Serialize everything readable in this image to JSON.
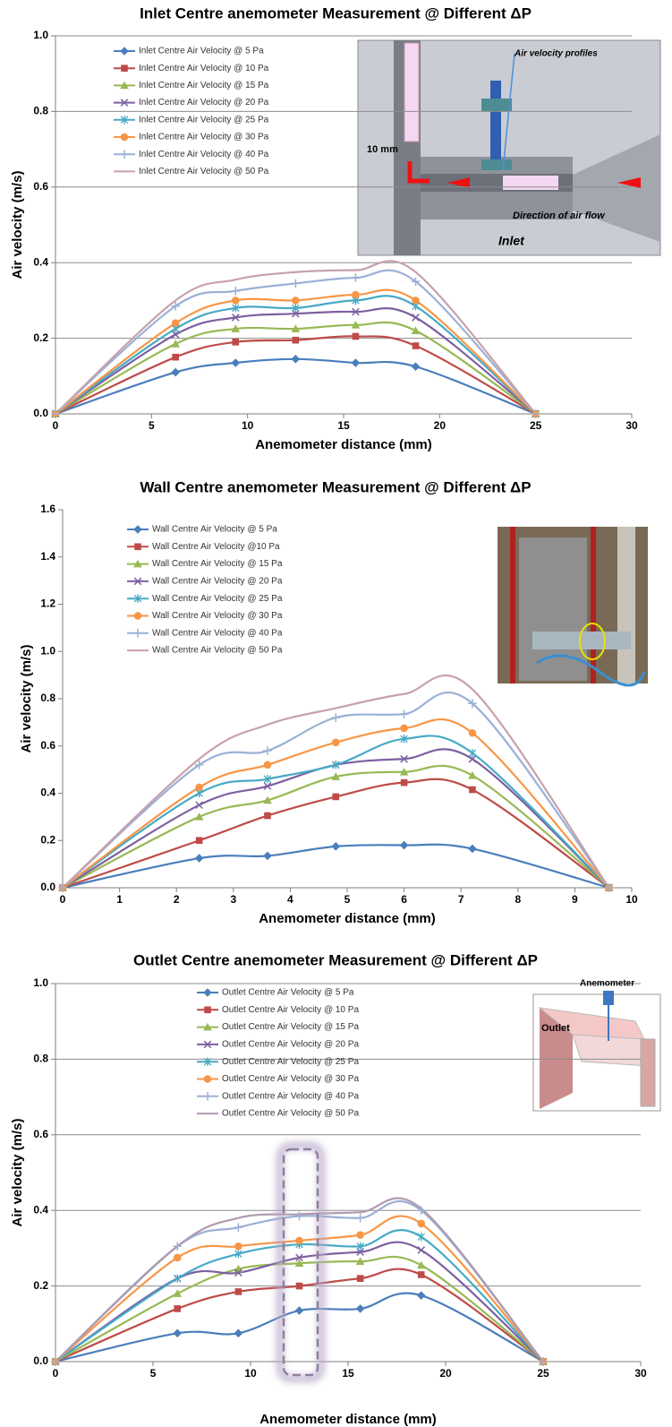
{
  "chart_data": [
    {
      "type": "line",
      "title": "Inlet Centre anemometer Measurement @ Different ΔP",
      "x_label": "Anemometer  distance (mm)",
      "y_label": "Air velocity (m/s)",
      "x": [
        0,
        6.25,
        9.375,
        12.5,
        15.625,
        18.75,
        25
      ],
      "xlim": [
        0,
        30
      ],
      "xticks": [
        0,
        5,
        10,
        15,
        20,
        25,
        30
      ],
      "ylim": [
        0,
        1
      ],
      "yticks": [
        {
          "value": 0,
          "label": "0.0"
        },
        0.2,
        0.4,
        0.6,
        0.8,
        {
          "value": 1,
          "label": "1.0"
        }
      ],
      "grid": true,
      "annotations": [
        "Air velocity profiles",
        "10 mm",
        "Direction of air flow",
        "Inlet"
      ],
      "series": [
        {
          "name": "Inlet Centre Air Velocity @ 5 Pa",
          "color": "#4a7ebb",
          "marker": "diamond",
          "values": [
            0,
            0.11,
            0.135,
            0.145,
            0.135,
            0.125,
            0
          ]
        },
        {
          "name": "Inlet Centre Air Velocity @ 10 Pa",
          "color": "#be4b48",
          "marker": "square",
          "values": [
            0,
            0.15,
            0.19,
            0.195,
            0.205,
            0.18,
            0
          ]
        },
        {
          "name": "Inlet Centre Air Velocity @ 15 Pa",
          "color": "#98b954",
          "marker": "triangle",
          "values": [
            0,
            0.185,
            0.225,
            0.225,
            0.235,
            0.22,
            0
          ]
        },
        {
          "name": "Inlet Centre Air Velocity @ 20 Pa",
          "color": "#7d60a0",
          "marker": "x",
          "values": [
            0,
            0.21,
            0.255,
            0.265,
            0.27,
            0.255,
            0
          ]
        },
        {
          "name": "Inlet Centre Air Velocity @ 25 Pa",
          "color": "#46aac5",
          "marker": "star",
          "values": [
            0,
            0.225,
            0.28,
            0.28,
            0.3,
            0.285,
            0
          ]
        },
        {
          "name": "Inlet Centre Air Velocity @ 30 Pa",
          "color": "#f79646",
          "marker": "circle",
          "values": [
            0,
            0.24,
            0.3,
            0.3,
            0.315,
            0.3,
            0
          ]
        },
        {
          "name": "Inlet Centre Air Velocity @ 40 Pa",
          "color": "#9bb0d6",
          "marker": "plus",
          "values": [
            0,
            0.285,
            0.325,
            0.345,
            0.36,
            0.35,
            0
          ]
        },
        {
          "name": "Inlet Centre Air Velocity @ 50 Pa",
          "color": "#c7a1ab",
          "marker": "none",
          "values": [
            0,
            0.3,
            0.355,
            0.375,
            0.38,
            0.375,
            0
          ]
        }
      ]
    },
    {
      "type": "line",
      "title": "Wall Centre anemometer Measurement @ Different ΔP",
      "x_label": "Anemometer distance (mm)",
      "y_label": "Air velocity (m/s)",
      "x": [
        0,
        2.4,
        3.6,
        4.8,
        6,
        7.2,
        9.6
      ],
      "xlim": [
        0,
        10
      ],
      "xticks": [
        0,
        1,
        2,
        3,
        4,
        5,
        6,
        7,
        8,
        9,
        10
      ],
      "ylim": [
        0,
        1.6
      ],
      "yticks": [
        {
          "value": 0,
          "label": "0.0"
        },
        0.2,
        0.4,
        0.6,
        0.8,
        {
          "value": 1,
          "label": "1.0"
        },
        1.2,
        1.4,
        1.6
      ],
      "grid": false,
      "series": [
        {
          "name": "Wall Centre Air Velocity @ 5 Pa",
          "color": "#4a7ebb",
          "marker": "diamond",
          "values": [
            0,
            0.125,
            0.135,
            0.175,
            0.18,
            0.165,
            0
          ]
        },
        {
          "name": "Wall Centre Air Velocity @10 Pa",
          "color": "#be4b48",
          "marker": "square",
          "values": [
            0,
            0.2,
            0.305,
            0.385,
            0.445,
            0.415,
            0
          ]
        },
        {
          "name": "Wall Centre Air Velocity @ 15 Pa",
          "color": "#98b954",
          "marker": "triangle",
          "values": [
            0,
            0.3,
            0.37,
            0.47,
            0.49,
            0.475,
            0
          ]
        },
        {
          "name": "Wall Centre Air Velocity @ 20 Pa",
          "color": "#7d60a0",
          "marker": "x",
          "values": [
            0,
            0.35,
            0.43,
            0.52,
            0.545,
            0.545,
            0
          ]
        },
        {
          "name": "Wall Centre Air Velocity @ 25 Pa",
          "color": "#46aac5",
          "marker": "star",
          "values": [
            0,
            0.4,
            0.46,
            0.52,
            0.63,
            0.57,
            0
          ]
        },
        {
          "name": "Wall Centre Air Velocity @ 30 Pa",
          "color": "#f79646",
          "marker": "circle",
          "values": [
            0,
            0.425,
            0.52,
            0.615,
            0.675,
            0.655,
            0
          ]
        },
        {
          "name": "Wall Centre Air Velocity @ 40 Pa",
          "color": "#9bb0d6",
          "marker": "plus",
          "values": [
            0,
            0.52,
            0.58,
            0.72,
            0.735,
            0.78,
            0
          ]
        },
        {
          "name": "Wall Centre Air Velocity @ 50 Pa",
          "color": "#c7a1ab",
          "marker": "none",
          "values": [
            0,
            0.545,
            0.69,
            0.76,
            0.82,
            0.84,
            0
          ]
        }
      ]
    },
    {
      "type": "line",
      "title": "Outlet Centre anemometer Measurement @ Different ΔP",
      "x_label": "Anemometer  distance (mm)",
      "y_label": "Air velocity (m/s)",
      "x": [
        0,
        6.25,
        9.375,
        12.5,
        15.625,
        18.75,
        25
      ],
      "xlim": [
        0,
        30
      ],
      "xticks": [
        0,
        5,
        10,
        15,
        20,
        25,
        30
      ],
      "ylim": [
        0,
        1
      ],
      "yticks": [
        {
          "value": 0,
          "label": "0.0"
        },
        0.2,
        0.4,
        0.6,
        0.8,
        {
          "value": 1,
          "label": "1.0"
        }
      ],
      "grid": true,
      "annotations": [
        "Anemometer",
        "Outlet"
      ],
      "series": [
        {
          "name": "Outlet Centre Air Velocity @ 5 Pa",
          "color": "#4a7ebb",
          "marker": "diamond",
          "values": [
            0,
            0.075,
            0.075,
            0.135,
            0.14,
            0.175,
            0
          ]
        },
        {
          "name": "Outlet Centre Air Velocity @ 10 Pa",
          "color": "#be4b48",
          "marker": "square",
          "values": [
            0,
            0.14,
            0.185,
            0.2,
            0.22,
            0.23,
            0
          ]
        },
        {
          "name": "Outlet Centre Air Velocity @ 15 Pa",
          "color": "#98b954",
          "marker": "triangle",
          "values": [
            0,
            0.18,
            0.245,
            0.26,
            0.265,
            0.255,
            0
          ]
        },
        {
          "name": "Outlet Centre Air Velocity @ 20 Pa",
          "color": "#7d60a0",
          "marker": "x",
          "values": [
            0,
            0.22,
            0.235,
            0.275,
            0.29,
            0.295,
            0
          ]
        },
        {
          "name": "Outlet Centre Air Velocity @ 25 Pa",
          "color": "#46aac5",
          "marker": "star",
          "values": [
            0,
            0.22,
            0.285,
            0.31,
            0.305,
            0.33,
            0
          ]
        },
        {
          "name": "Outlet Centre Air Velocity @ 30 Pa",
          "color": "#f79646",
          "marker": "circle",
          "values": [
            0,
            0.275,
            0.305,
            0.32,
            0.335,
            0.365,
            0
          ]
        },
        {
          "name": "Outlet Centre Air Velocity @ 40 Pa",
          "color": "#9bb0d6",
          "marker": "plus",
          "values": [
            0,
            0.305,
            0.355,
            0.385,
            0.38,
            0.4,
            0
          ]
        },
        {
          "name": "Outlet Centre Air Velocity @ 50 Pa",
          "color": "#b09aaf",
          "marker": "none",
          "values": [
            0,
            0.305,
            0.38,
            0.39,
            0.395,
            0.405,
            0
          ]
        }
      ]
    }
  ]
}
